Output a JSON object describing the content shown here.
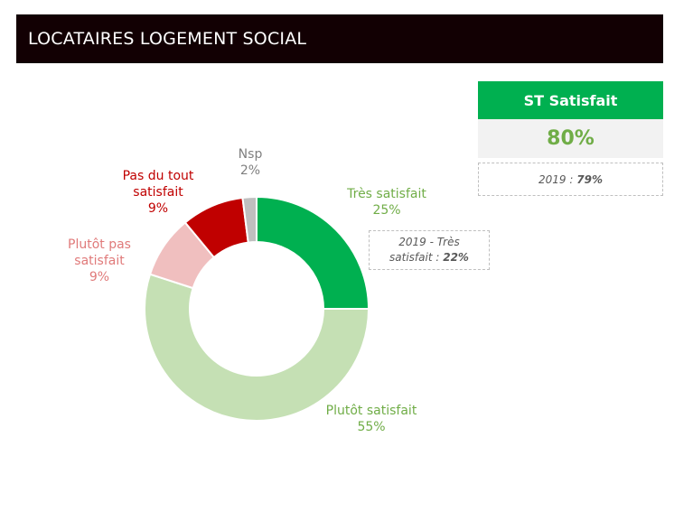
{
  "header": {
    "title": "LOCATAIRES LOGEMENT SOCIAL"
  },
  "summary": {
    "title": "ST Satisfait",
    "value": "80%",
    "prev_prefix": "2019 : ",
    "prev_value": "79%"
  },
  "annotation": {
    "line1": "2019 - Très",
    "line2_prefix": "satisfait : ",
    "line2_value": "22%"
  },
  "chart_data": {
    "type": "pie",
    "style": "donut",
    "slices": [
      {
        "label": "Très satisfait",
        "value": 25,
        "display": "25%",
        "color": "#00b050"
      },
      {
        "label": "Plutôt satisfait",
        "value": 55,
        "display": "55%",
        "color": "#c5e0b4"
      },
      {
        "label": "Plutôt pas satisfait",
        "value": 9,
        "display": "9%",
        "color": "#f0bfbf"
      },
      {
        "label": "Pas du tout satisfait",
        "value": 9,
        "display": "9%",
        "color": "#c00000"
      },
      {
        "label": "Nsp",
        "value": 2,
        "display": "2%",
        "color": "#bfbfbf"
      }
    ],
    "label_colors": [
      "#70ad47",
      "#70ad47",
      "#e07a7a",
      "#c00000",
      "#7f7f7f"
    ],
    "label_lines": [
      [
        "Très satisfait"
      ],
      [
        "Plutôt satisfait"
      ],
      [
        "Plutôt pas",
        "satisfait"
      ],
      [
        "Pas du tout",
        "satisfait"
      ],
      [
        "Nsp"
      ]
    ]
  }
}
